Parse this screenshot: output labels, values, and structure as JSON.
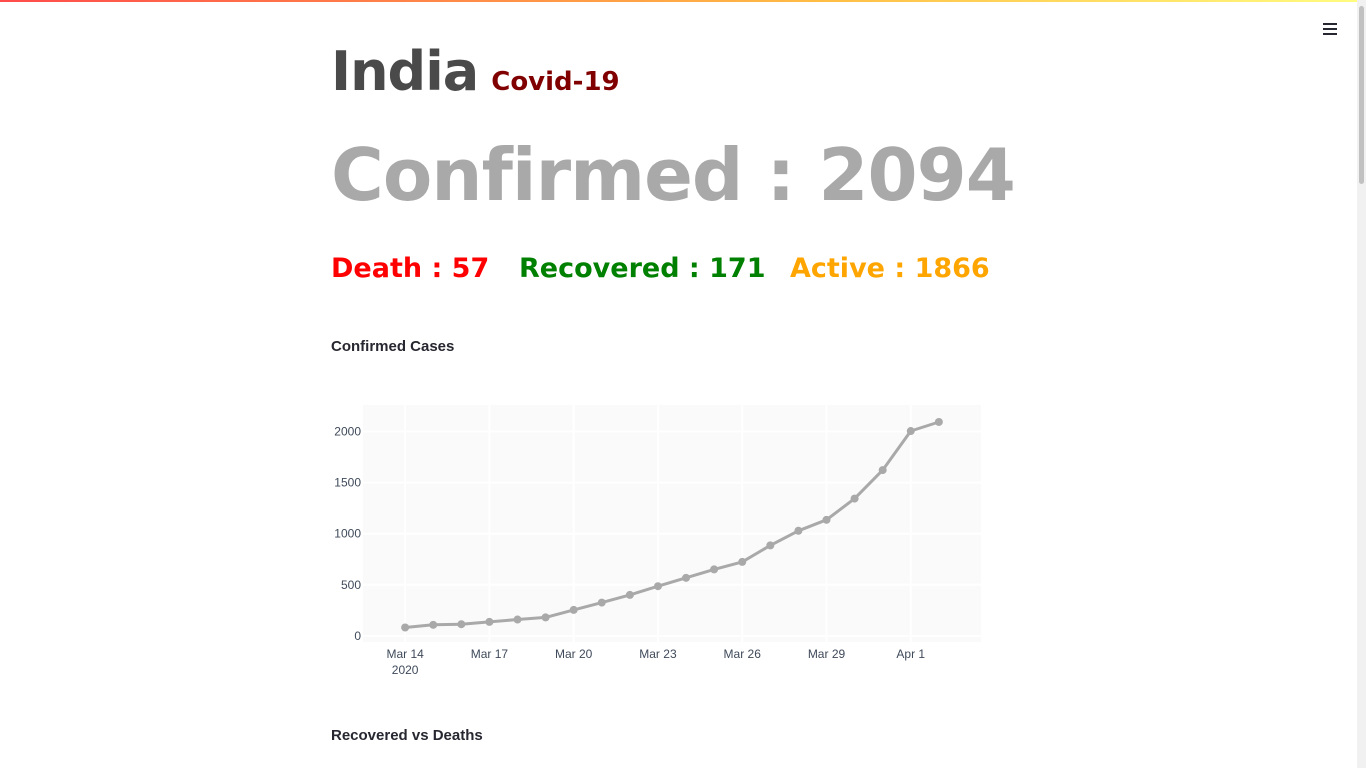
{
  "header": {
    "menu_icon": "hamburger-menu-icon"
  },
  "title": {
    "country": "India",
    "subtitle": "Covid-19"
  },
  "stats": {
    "confirmed": "Confirmed : 2094",
    "death": "Death : 57",
    "recovered": "Recovered : 171",
    "active": "Active : 1866"
  },
  "colors": {
    "country": "#4a4a4a",
    "subtitle": "#800000",
    "confirmed": "#a9a9a9",
    "death": "#ff0000",
    "recovered": "#008000",
    "active": "#ffa500",
    "line": "#a9a9a9"
  },
  "sections": {
    "confirmed_cases": "Confirmed Cases",
    "recovered_vs_deaths": "Recovered vs Deaths"
  },
  "chart_data": {
    "type": "line",
    "title": "Confirmed Cases",
    "x": [
      "2020-03-14",
      "2020-03-15",
      "2020-03-16",
      "2020-03-17",
      "2020-03-18",
      "2020-03-19",
      "2020-03-20",
      "2020-03-21",
      "2020-03-22",
      "2020-03-23",
      "2020-03-24",
      "2020-03-25",
      "2020-03-26",
      "2020-03-27",
      "2020-03-28",
      "2020-03-29",
      "2020-03-30",
      "2020-03-31",
      "2020-04-01",
      "2020-04-02"
    ],
    "series": [
      {
        "values": [
          82,
          108,
          114,
          137,
          160,
          181,
          254,
          326,
          401,
          486,
          568,
          651,
          724,
          886,
          1029,
          1136,
          1344,
          1623,
          2005,
          2094
        ]
      }
    ],
    "x_ticks": [
      "Mar 14",
      "Mar 17",
      "Mar 20",
      "Mar 23",
      "Mar 26",
      "Mar 29",
      "Apr 1"
    ],
    "x_tick_year": "2020",
    "y_ticks": [
      "0",
      "500",
      "1000",
      "1500",
      "2000"
    ],
    "ylim": [
      -60,
      2260
    ],
    "grid": true,
    "line_color": "#a9a9a9"
  }
}
